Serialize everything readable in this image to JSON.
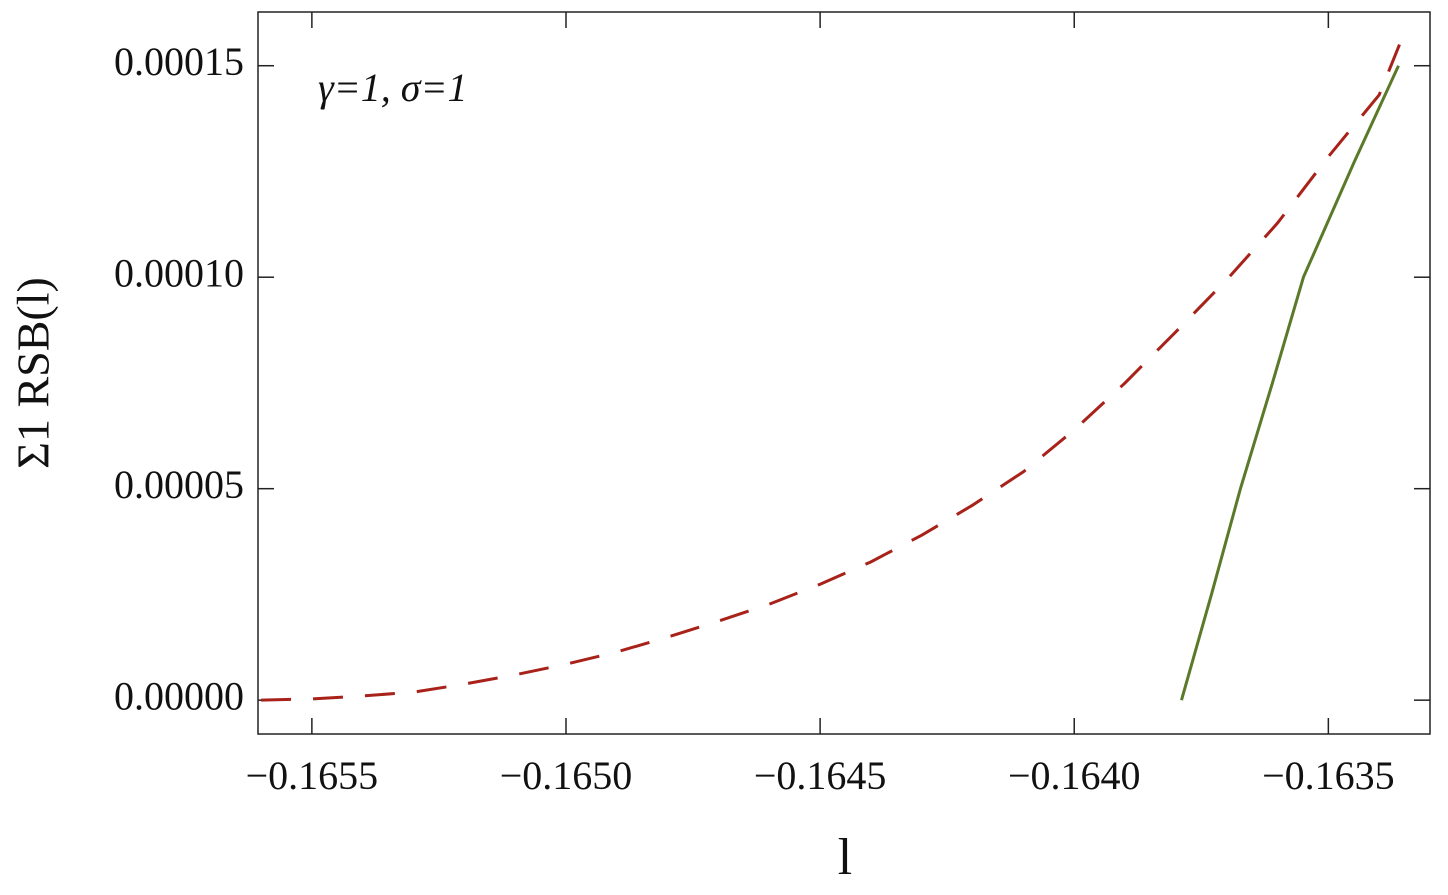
{
  "chart_data": {
    "type": "line",
    "annotation": "γ=1, σ=1",
    "xlabel": "l",
    "ylabel": "Σ1 RSB(l)",
    "xlim": [
      -0.165606,
      -0.1633
    ],
    "ylim": [
      -8e-06,
      0.0001627
    ],
    "xticks": [
      {
        "value": -0.1655,
        "label": "−0.1655"
      },
      {
        "value": -0.165,
        "label": "−0.1650"
      },
      {
        "value": -0.1645,
        "label": "−0.1645"
      },
      {
        "value": -0.164,
        "label": "−0.1640"
      },
      {
        "value": -0.1635,
        "label": "−0.1635"
      }
    ],
    "yticks": [
      {
        "value": 0,
        "label": "0.00000"
      },
      {
        "value": 5e-05,
        "label": "0.00005"
      },
      {
        "value": 0.0001,
        "label": "0.00010"
      },
      {
        "value": 0.00015,
        "label": "0.00015"
      }
    ],
    "series": [
      {
        "color": "#a8221a",
        "dashed": true,
        "x": [
          -0.1656,
          -0.1655,
          -0.1654,
          -0.1653,
          -0.1652,
          -0.1651,
          -0.165,
          -0.1649,
          -0.1648,
          -0.1647,
          -0.1646,
          -0.1645,
          -0.1644,
          -0.1643,
          -0.1642,
          -0.1641,
          -0.164,
          -0.1639,
          -0.1638,
          -0.1637,
          -0.1636,
          -0.1635,
          -0.1634,
          -0.16336
        ],
        "values": [
          0,
          3e-07,
          1e-06,
          1.9e-06,
          3.8e-06,
          6e-06,
          8.5e-06,
          1.14e-05,
          1.49e-05,
          1.87e-05,
          2.27e-05,
          2.74e-05,
          3.27e-05,
          3.9e-05,
          4.61e-05,
          5.4e-05,
          6.39e-05,
          7.5e-05,
          8.71e-05,
          9.94e-05,
          0.0001128,
          0.0001285,
          0.0001431,
          0.000155
        ]
      },
      {
        "color": "#5a7a2a",
        "dashed": false,
        "x": [
          -0.163789,
          -0.16373,
          -0.163673,
          -0.16361,
          -0.163549,
          -0.16345,
          -0.163362
        ],
        "values": [
          0,
          2.5e-05,
          5e-05,
          7.5e-05,
          0.0001,
          0.000127,
          0.00015
        ]
      }
    ]
  }
}
